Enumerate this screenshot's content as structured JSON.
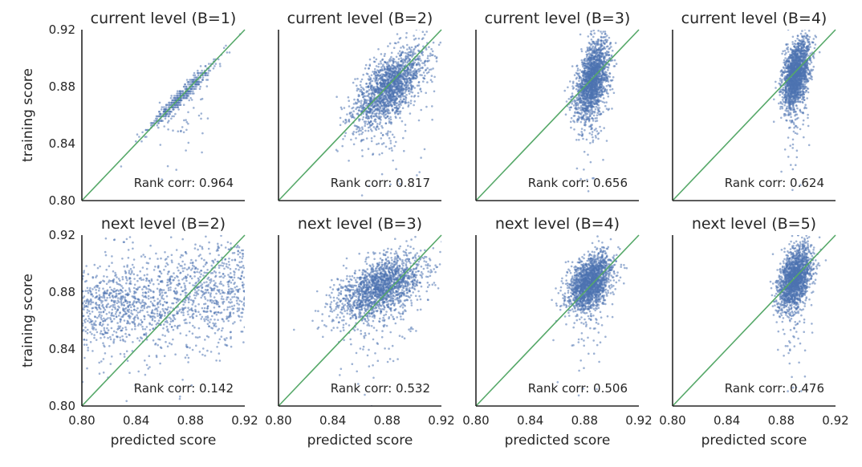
{
  "chart_data": [
    {
      "type": "scatter",
      "title": "current level (B=1)",
      "row": 0,
      "col": 0,
      "xlabel": "",
      "ylabel": "training score",
      "xlim": [
        0.8,
        0.92
      ],
      "ylim": [
        0.8,
        0.92
      ],
      "xticks": [],
      "yticks": [
        "0.80",
        "0.84",
        "0.88",
        "0.92"
      ],
      "annotation": "Rank corr: 0.964",
      "pattern": "discrete",
      "spread": 0.003,
      "xmean": 0.875,
      "xsd": 0.012,
      "n": 500,
      "color": "#4c72b0",
      "diag_color": "#55a868"
    },
    {
      "type": "scatter",
      "title": "current level (B=2)",
      "row": 0,
      "col": 1,
      "xlabel": "",
      "ylabel": "",
      "xlim": [
        0.8,
        0.92
      ],
      "ylim": [
        0.8,
        0.92
      ],
      "xticks": [],
      "yticks": [],
      "annotation": "Rank corr: 0.817",
      "pattern": "cloud",
      "xmean": 0.882,
      "xsd": 0.013,
      "slope": 0.65,
      "ymean": 0.88,
      "ysd": 0.011,
      "n": 1800,
      "color": "#4c72b0",
      "diag_color": "#55a868"
    },
    {
      "type": "scatter",
      "title": "current level (B=3)",
      "row": 0,
      "col": 2,
      "xlabel": "",
      "ylabel": "",
      "xlim": [
        0.8,
        0.92
      ],
      "ylim": [
        0.8,
        0.92
      ],
      "xticks": [],
      "yticks": [],
      "annotation": "Rank corr: 0.656",
      "pattern": "cloud",
      "xmean": 0.886,
      "xsd": 0.006,
      "slope": 1.0,
      "ymean": 0.885,
      "ysd": 0.012,
      "n": 1800,
      "color": "#4c72b0",
      "diag_color": "#55a868"
    },
    {
      "type": "scatter",
      "title": "current level (B=4)",
      "row": 0,
      "col": 3,
      "xlabel": "",
      "ylabel": "",
      "xlim": [
        0.8,
        0.92
      ],
      "ylim": [
        0.8,
        0.92
      ],
      "xticks": [],
      "yticks": [],
      "annotation": "Rank corr: 0.624",
      "pattern": "cloud",
      "xmean": 0.891,
      "xsd": 0.005,
      "slope": 1.0,
      "ymean": 0.889,
      "ysd": 0.011,
      "n": 1800,
      "color": "#4c72b0",
      "diag_color": "#55a868"
    },
    {
      "type": "scatter",
      "title": "next level (B=2)",
      "row": 1,
      "col": 0,
      "xlabel": "predicted score",
      "ylabel": "training score",
      "xlim": [
        0.8,
        0.92
      ],
      "ylim": [
        0.8,
        0.92
      ],
      "xticks": [
        "0.80",
        "0.84",
        "0.88",
        "0.92"
      ],
      "yticks": [
        "0.80",
        "0.84",
        "0.88",
        "0.92"
      ],
      "annotation": "Rank corr: 0.142",
      "pattern": "uniform",
      "xrange": [
        0.8,
        0.92
      ],
      "slope": 0.15,
      "ymean": 0.876,
      "ysd": 0.017,
      "n": 1500,
      "color": "#4c72b0",
      "diag_color": "#55a868"
    },
    {
      "type": "scatter",
      "title": "next level (B=3)",
      "row": 1,
      "col": 1,
      "xlabel": "predicted score",
      "ylabel": "",
      "xlim": [
        0.8,
        0.92
      ],
      "ylim": [
        0.8,
        0.92
      ],
      "xticks": [
        "0.80",
        "0.84",
        "0.88",
        "0.92"
      ],
      "yticks": [],
      "annotation": "Rank corr: 0.532",
      "pattern": "cloud",
      "xmean": 0.875,
      "xsd": 0.016,
      "slope": 0.35,
      "ymean": 0.883,
      "ysd": 0.01,
      "n": 1800,
      "color": "#4c72b0",
      "diag_color": "#55a868"
    },
    {
      "type": "scatter",
      "title": "next level (B=4)",
      "row": 1,
      "col": 2,
      "xlabel": "predicted score",
      "ylabel": "",
      "xlim": [
        0.8,
        0.92
      ],
      "ylim": [
        0.8,
        0.92
      ],
      "xticks": [
        "0.80",
        "0.84",
        "0.88",
        "0.92"
      ],
      "yticks": [],
      "annotation": "Rank corr: 0.506",
      "pattern": "cloud",
      "xmean": 0.884,
      "xsd": 0.008,
      "slope": 0.5,
      "ymean": 0.887,
      "ysd": 0.009,
      "n": 1800,
      "color": "#4c72b0",
      "diag_color": "#55a868"
    },
    {
      "type": "scatter",
      "title": "next level (B=5)",
      "row": 1,
      "col": 3,
      "xlabel": "predicted score",
      "ylabel": "",
      "xlim": [
        0.8,
        0.92
      ],
      "ylim": [
        0.8,
        0.92
      ],
      "xticks": [
        "0.80",
        "0.84",
        "0.88",
        "0.92"
      ],
      "yticks": [],
      "annotation": "Rank corr: 0.476",
      "pattern": "cloud",
      "xmean": 0.89,
      "xsd": 0.006,
      "slope": 0.6,
      "ymean": 0.89,
      "ysd": 0.01,
      "n": 1800,
      "color": "#4c72b0",
      "diag_color": "#55a868"
    }
  ]
}
